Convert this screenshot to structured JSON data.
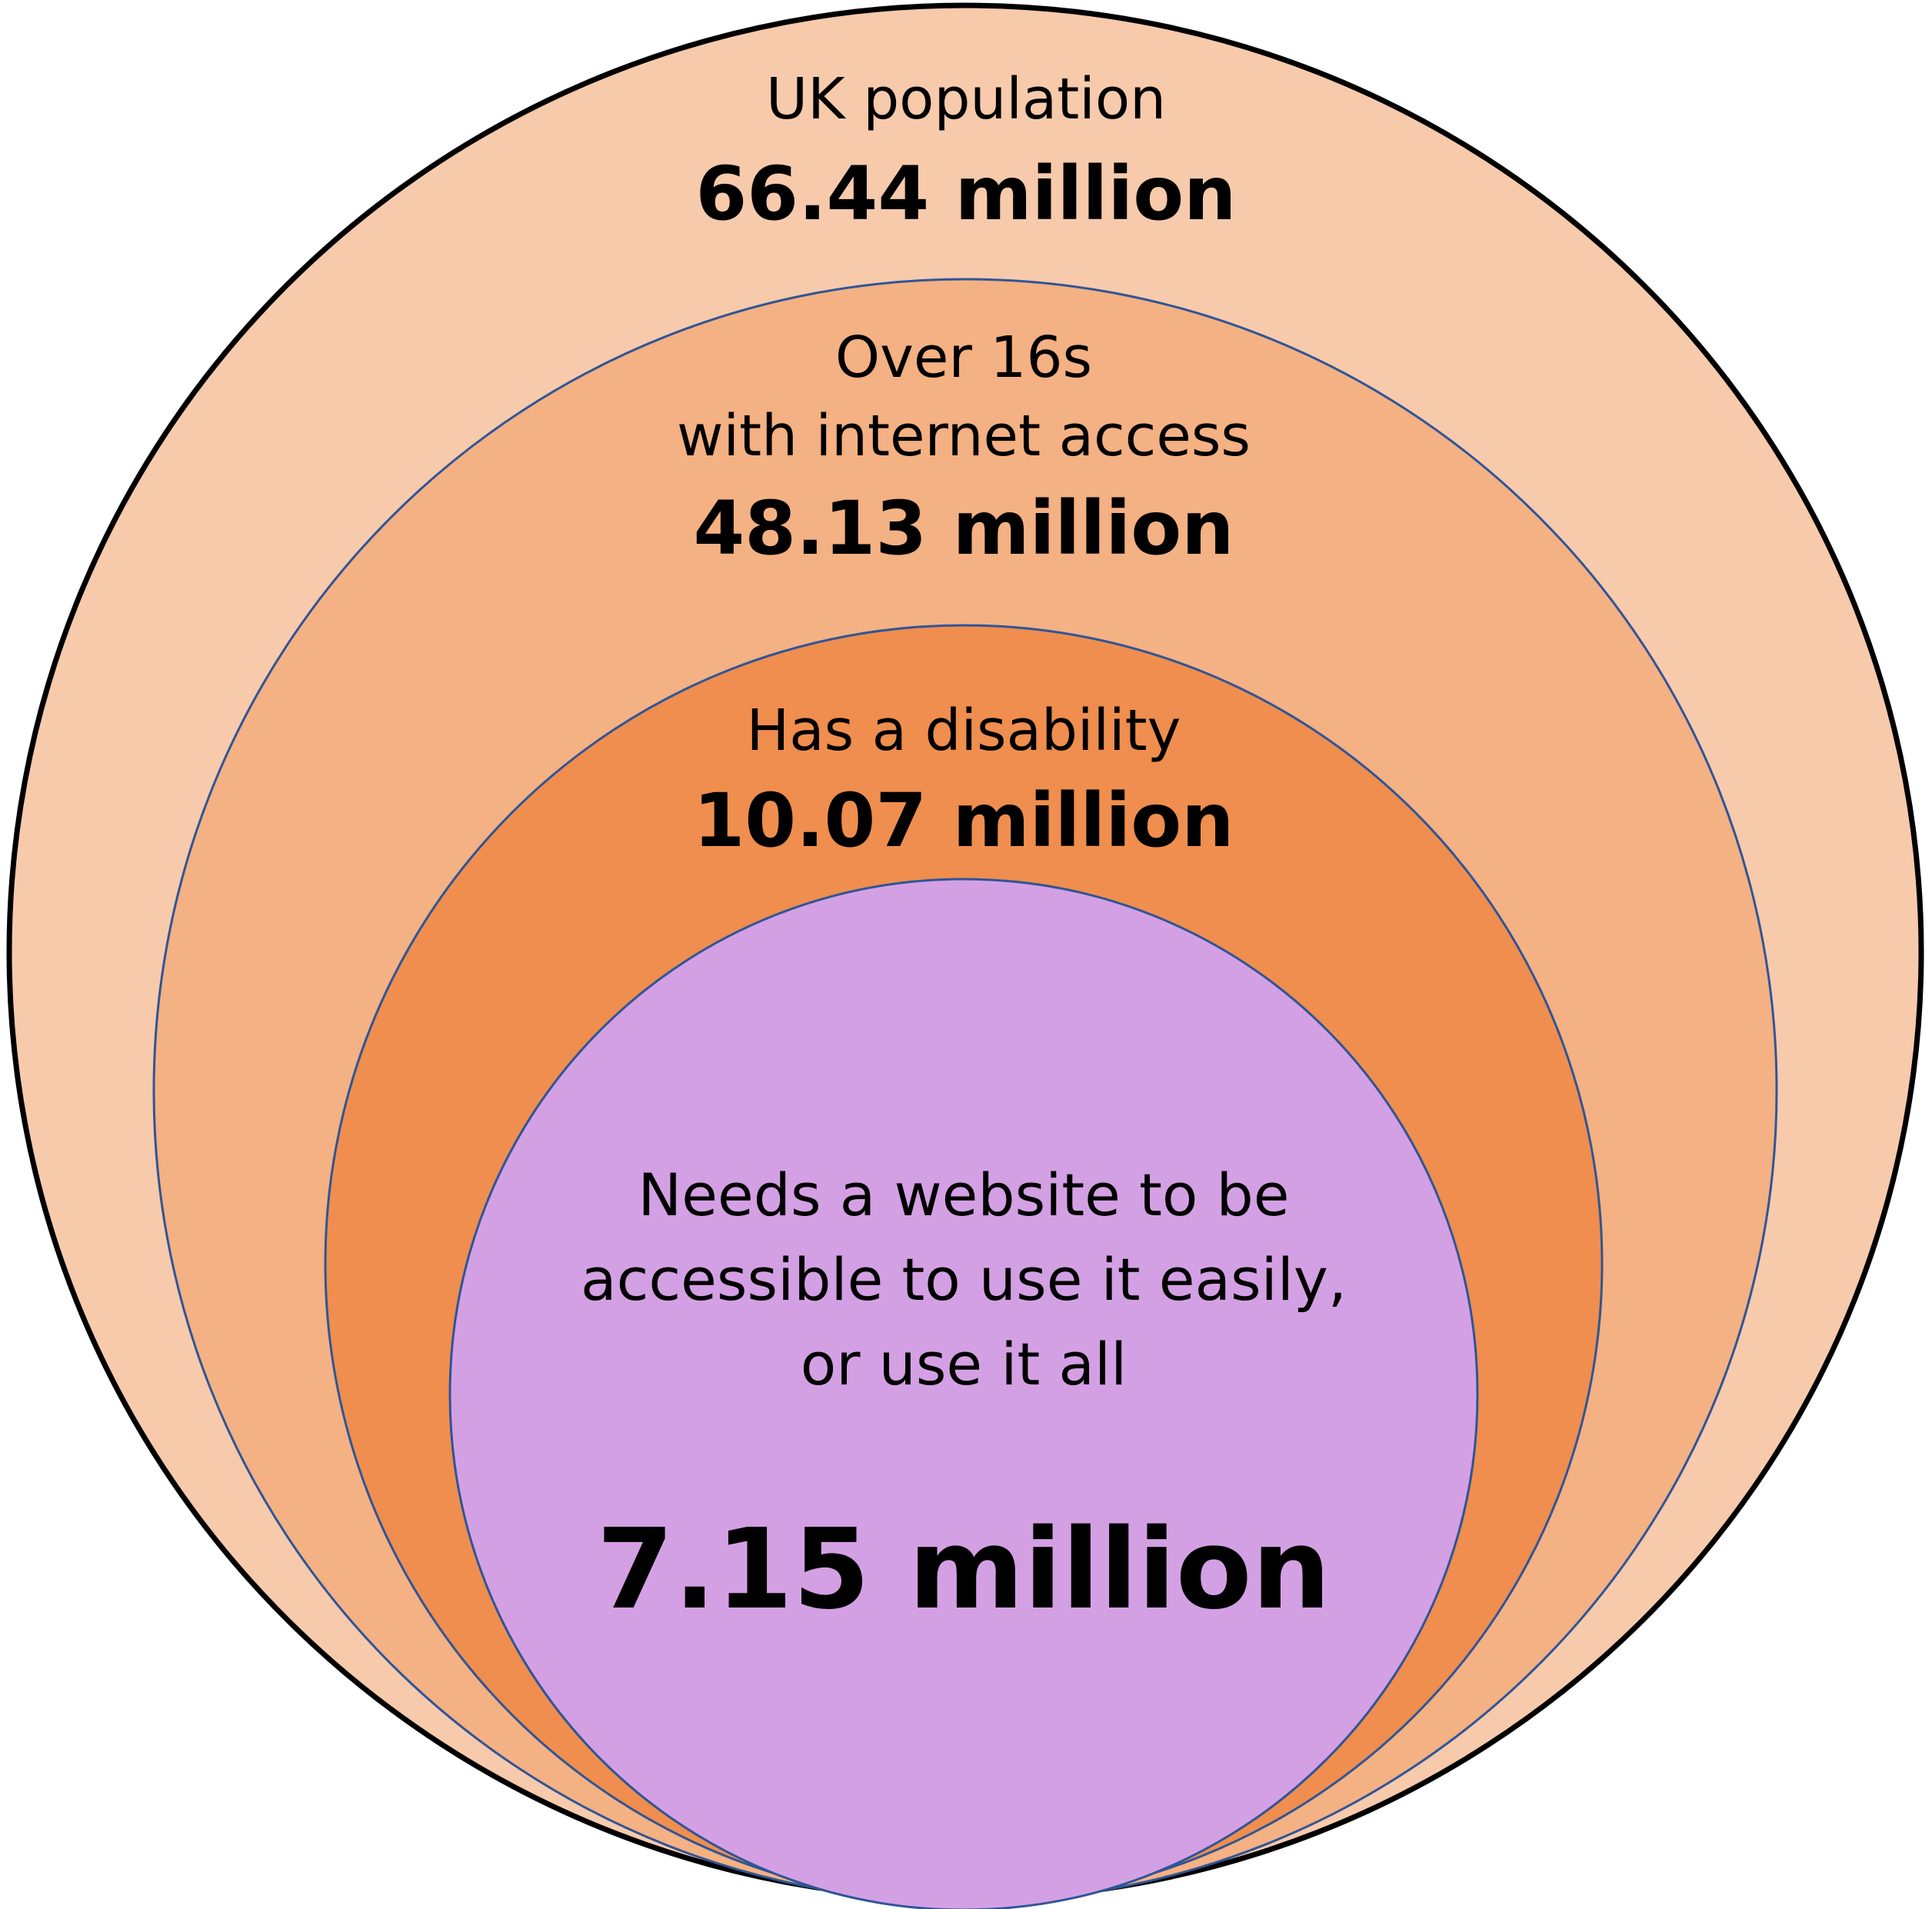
{
  "diagram": {
    "rings": [
      {
        "label": "UK population",
        "value": "66.44 million",
        "fill": "#F7CAAC",
        "stroke": "#000000"
      },
      {
        "label_line1": "Over 16s",
        "label_line2": "with internet access",
        "value": "48.13 million",
        "fill": "#F4B183",
        "stroke": "#2F5597"
      },
      {
        "label": "Has a disability",
        "value": "10.07 million",
        "fill": "#EF8E4E",
        "stroke": "#2F5597"
      },
      {
        "label_line1": "Needs a website to be",
        "label_line2": "accessible to use it easily,",
        "label_line3": "or use it all",
        "value": "7.15 million",
        "fill": "#D4A0E4",
        "stroke": "#2F5597"
      }
    ]
  }
}
